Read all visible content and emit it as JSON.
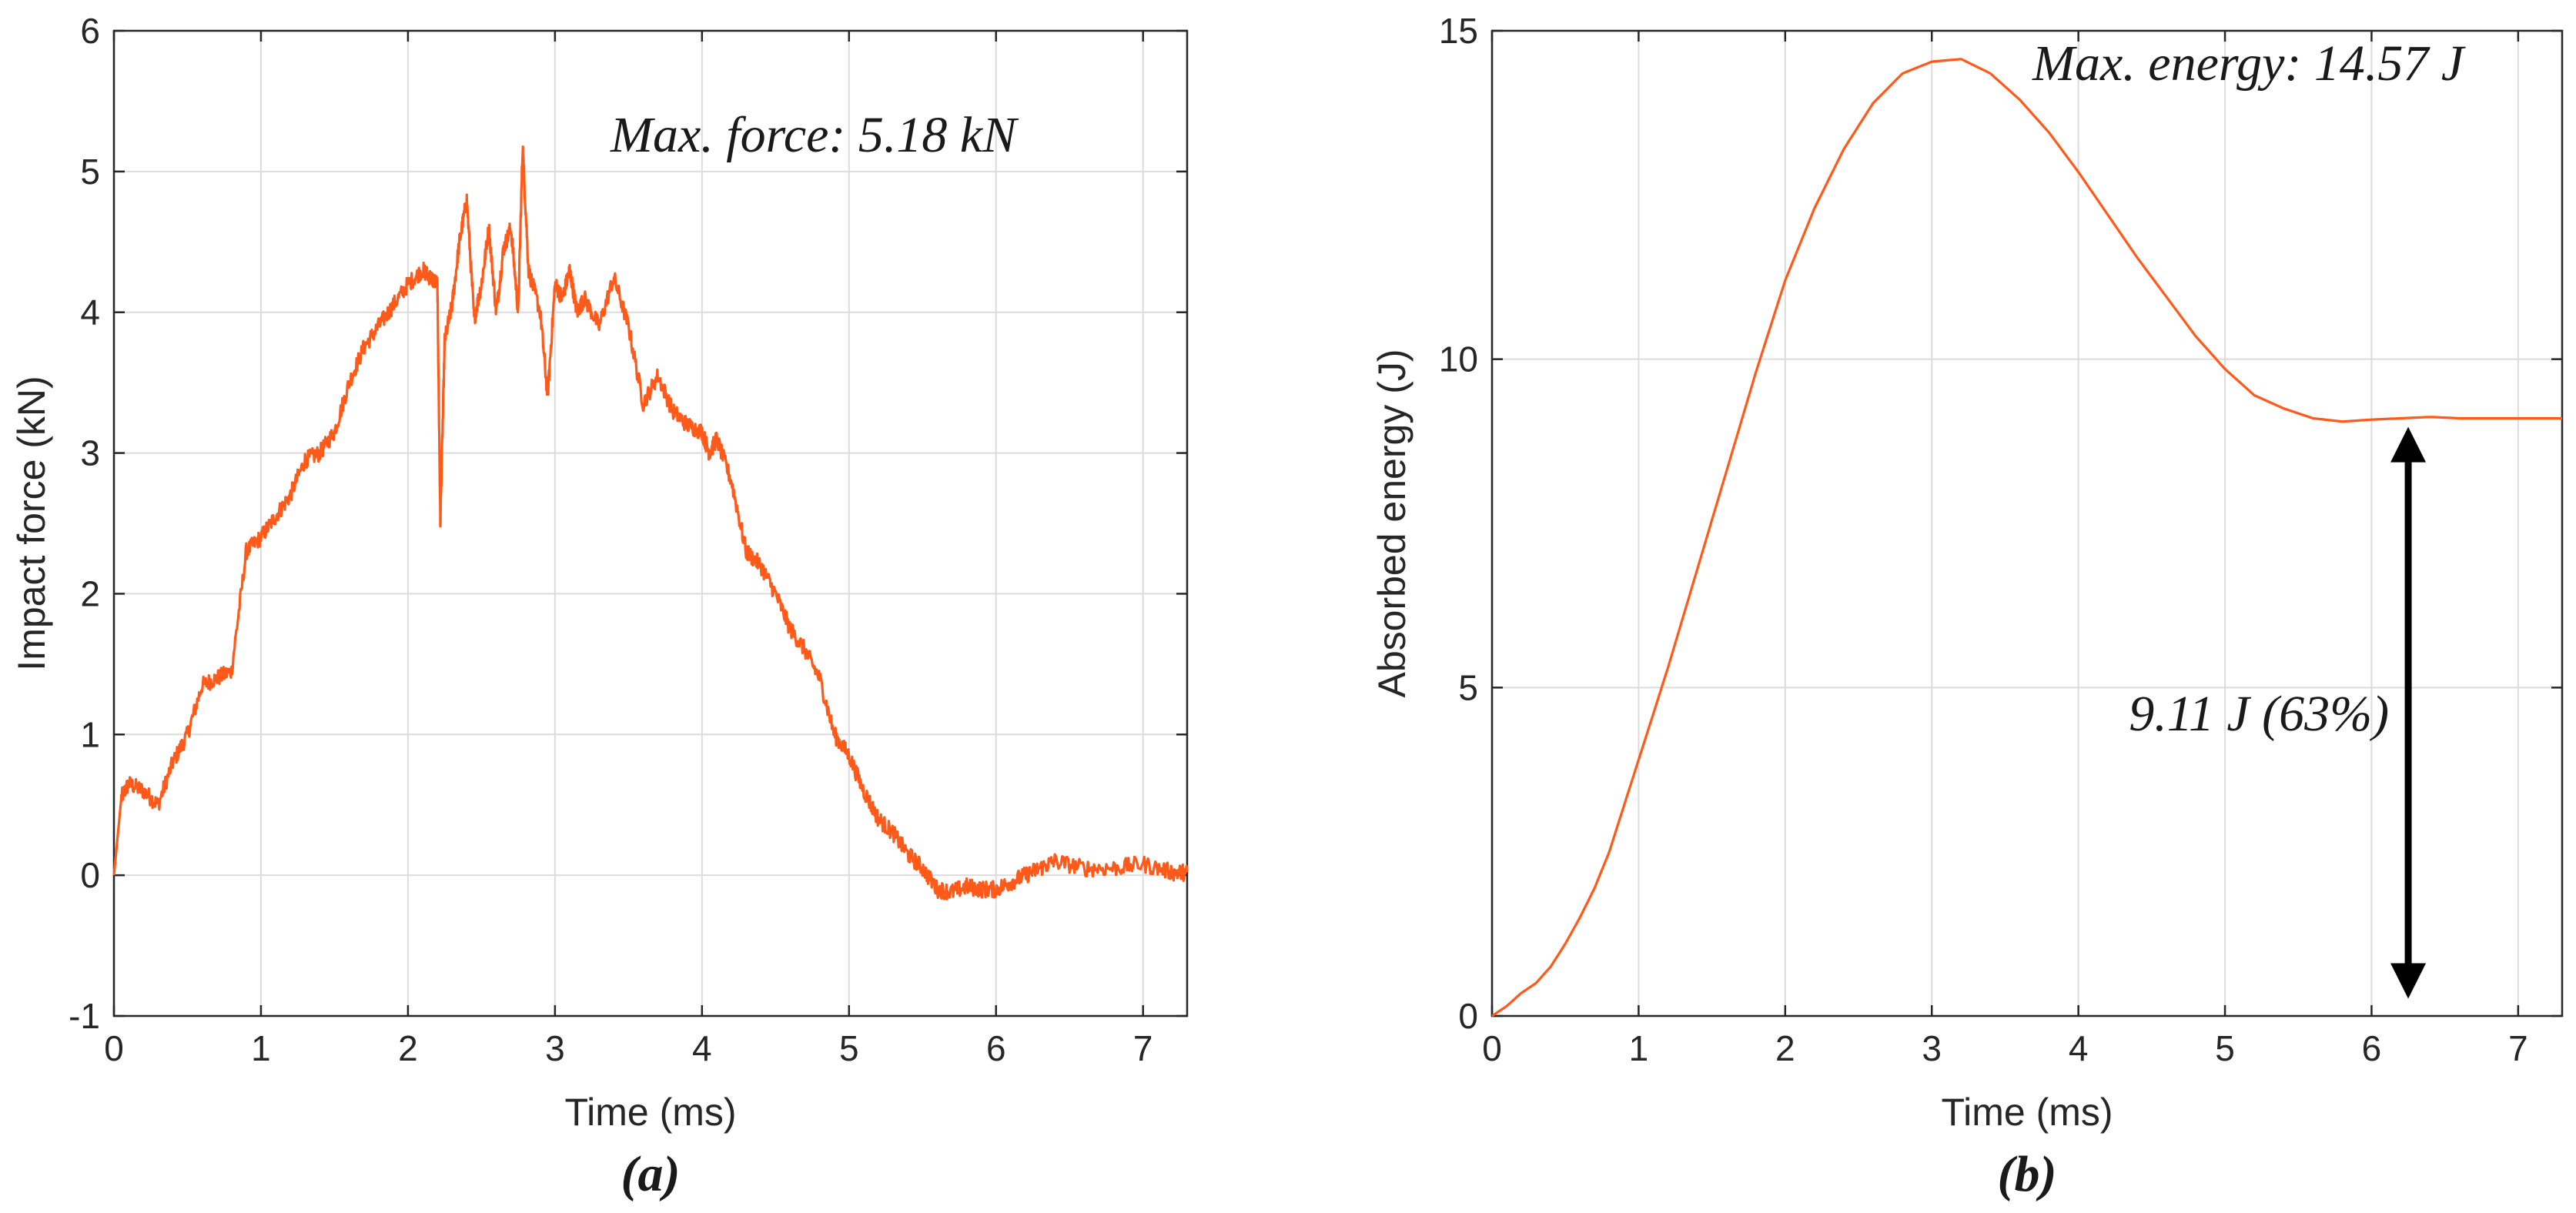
{
  "chart_data": [
    {
      "type": "line",
      "panel_label": "(a)",
      "title": "",
      "xlabel": "Time (ms)",
      "ylabel": "Impact force (kN)",
      "xlim": [
        0,
        7.3
      ],
      "ylim": [
        -1,
        6
      ],
      "xticks": [
        "0",
        "1",
        "2",
        "3",
        "4",
        "5",
        "6",
        "7"
      ],
      "yticks": [
        "-1",
        "0",
        "1",
        "2",
        "3",
        "4",
        "5",
        "6"
      ],
      "grid": true,
      "color": "#ff5a1a",
      "annotation": "Max. force: 5.18 kN",
      "max_force_kN": 5.18,
      "series": [
        {
          "name": "Impact force",
          "x": [
            0,
            0.05,
            0.1,
            0.2,
            0.3,
            0.4,
            0.5,
            0.6,
            0.7,
            0.8,
            0.9,
            1.0,
            1.1,
            1.2,
            1.3,
            1.4,
            1.5,
            1.6,
            1.7,
            1.8,
            1.9,
            2.0,
            2.1,
            2.15,
            2.2,
            2.22,
            2.25,
            2.3,
            2.35,
            2.4,
            2.45,
            2.5,
            2.55,
            2.6,
            2.65,
            2.7,
            2.75,
            2.78,
            2.82,
            2.9,
            2.95,
            3.0,
            3.05,
            3.1,
            3.15,
            3.2,
            3.3,
            3.4,
            3.5,
            3.6,
            3.7,
            3.8,
            3.9,
            4.0,
            4.05,
            4.1,
            4.2,
            4.3,
            4.4,
            4.5,
            4.6,
            4.7,
            4.8,
            4.9,
            5.0,
            5.1,
            5.2,
            5.3,
            5.4,
            5.5,
            5.6,
            5.7,
            5.8,
            5.9,
            6.0,
            6.1,
            6.2,
            6.3,
            6.4,
            6.6,
            6.8,
            7.0,
            7.2,
            7.3
          ],
          "y": [
            0,
            0.55,
            0.65,
            0.6,
            0.5,
            0.8,
            1.0,
            1.35,
            1.4,
            1.45,
            2.3,
            2.4,
            2.55,
            2.7,
            2.95,
            3.0,
            3.15,
            3.5,
            3.75,
            3.9,
            4.05,
            4.2,
            4.3,
            4.25,
            4.2,
            2.5,
            3.8,
            4.05,
            4.5,
            4.8,
            3.95,
            4.2,
            4.6,
            4.0,
            4.45,
            4.6,
            4.0,
            5.18,
            4.3,
            4.0,
            3.4,
            4.2,
            4.1,
            4.3,
            4.0,
            4.1,
            3.9,
            4.25,
            3.9,
            3.35,
            3.55,
            3.3,
            3.2,
            3.15,
            3.0,
            3.1,
            2.8,
            2.3,
            2.2,
            2.0,
            1.75,
            1.6,
            1.4,
            1.0,
            0.85,
            0.6,
            0.4,
            0.3,
            0.15,
            0.05,
            -0.1,
            -0.12,
            -0.08,
            -0.1,
            -0.1,
            -0.05,
            0.0,
            0.05,
            0.1,
            0.05,
            0.05,
            0.08,
            0.02,
            0.02
          ]
        }
      ]
    },
    {
      "type": "line",
      "panel_label": "(b)",
      "title": "",
      "xlabel": "Time (ms)",
      "ylabel": "Absorbed energy (J)",
      "xlim": [
        0,
        7.3
      ],
      "ylim": [
        0,
        15
      ],
      "xticks": [
        "0",
        "1",
        "2",
        "3",
        "4",
        "5",
        "6",
        "7"
      ],
      "yticks": [
        "0",
        "5",
        "10",
        "15"
      ],
      "grid": true,
      "color": "#ff5a1a",
      "annotation": "Max. energy: 14.57 J",
      "max_energy_J": 14.57,
      "arrow_annotation": "9.11 J (63%)",
      "absorbed_energy_J": 9.11,
      "absorbed_percent": 63,
      "arrow_x": 6.25,
      "arrow_from_y": 0.1,
      "arrow_to_y": 9.11,
      "series": [
        {
          "name": "Absorbed energy",
          "x": [
            0,
            0.1,
            0.2,
            0.3,
            0.4,
            0.5,
            0.6,
            0.7,
            0.8,
            0.9,
            1.0,
            1.2,
            1.4,
            1.6,
            1.8,
            2.0,
            2.2,
            2.4,
            2.6,
            2.8,
            3.0,
            3.2,
            3.4,
            3.6,
            3.8,
            4.0,
            4.2,
            4.4,
            4.6,
            4.8,
            5.0,
            5.2,
            5.4,
            5.6,
            5.8,
            6.0,
            6.2,
            6.4,
            6.6,
            6.8,
            7.0,
            7.2,
            7.3
          ],
          "y": [
            0,
            0.15,
            0.35,
            0.5,
            0.75,
            1.1,
            1.5,
            1.95,
            2.5,
            3.2,
            3.9,
            5.3,
            6.8,
            8.3,
            9.8,
            11.2,
            12.3,
            13.2,
            13.9,
            14.35,
            14.53,
            14.57,
            14.35,
            13.95,
            13.45,
            12.85,
            12.2,
            11.55,
            10.95,
            10.35,
            9.85,
            9.45,
            9.25,
            9.1,
            9.05,
            9.08,
            9.1,
            9.12,
            9.1,
            9.1,
            9.1,
            9.1,
            9.1
          ]
        }
      ]
    }
  ]
}
